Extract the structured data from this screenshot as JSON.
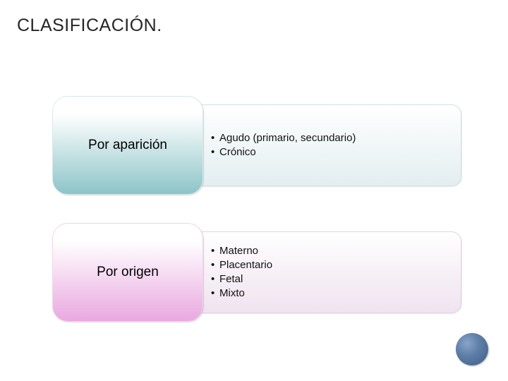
{
  "title": {
    "text": "CLASIFICACIÓN.",
    "color": "#262626",
    "fontsize": 25
  },
  "slide": {
    "background": "#ffffff"
  },
  "rows": [
    {
      "label": "Por aparición",
      "label_color": "#000000",
      "pill_gradient_top": "#ffffff",
      "pill_gradient_bottom": "#8cc4c8",
      "pill_border": "#d9e8ea",
      "panel_bg_top": "#ffffff",
      "panel_bg_bottom": "#e3eef0",
      "panel_border": "#cfe1e3",
      "items": [
        "Agudo (primario, secundario)",
        "Crónico"
      ],
      "item_color": "#111111",
      "item_fontsize": 15
    },
    {
      "label": "Por origen",
      "label_color": "#000000",
      "pill_gradient_top": "#ffffff",
      "pill_gradient_bottom": "#e9a8e0",
      "pill_border": "#eed6ea",
      "panel_bg_top": "#ffffff",
      "panel_bg_bottom": "#efe3ef",
      "panel_border": "#e3d3e3",
      "items": [
        "Materno",
        "Placentario",
        "Fetal",
        "Mixto"
      ],
      "item_color": "#111111",
      "item_fontsize": 15
    }
  ],
  "decor": {
    "visible": true
  }
}
